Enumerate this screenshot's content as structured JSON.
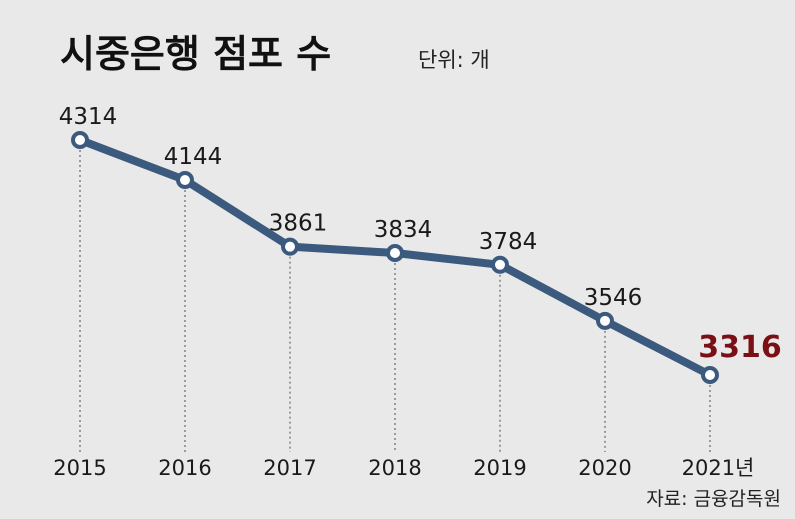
{
  "chart_data": {
    "type": "line",
    "title": "시중은행 점포 수",
    "unit_label": "단위: 개",
    "source": "자료: 금융감독원",
    "x_tick_labels": [
      "2015",
      "2016",
      "2017",
      "2018",
      "2019",
      "2020",
      "2021년"
    ],
    "x": [
      2015,
      2016,
      2017,
      2018,
      2019,
      2020,
      2021
    ],
    "values": [
      4314,
      4144,
      3861,
      3834,
      3784,
      3546,
      3316
    ],
    "value_labels": [
      "4314",
      "4144",
      "3861",
      "3834",
      "3784",
      "3546",
      "3316"
    ],
    "ylim": [
      3316,
      4314
    ],
    "grid": false,
    "colors": {
      "line": "#3b5a7e",
      "marker_fill": "#ffffff",
      "highlight_label": "#7a1016",
      "drop_line": "#666666",
      "background": "#e9e9e9"
    }
  }
}
